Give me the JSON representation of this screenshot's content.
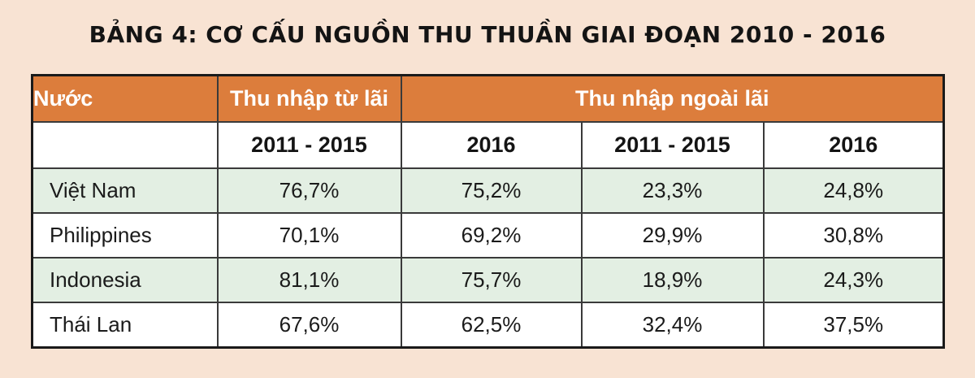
{
  "title": "BẢNG 4: CƠ CẤU NGUỒN THU THUẦN GIAI ĐOẠN 2010 - 2016",
  "colors": {
    "background": "#f8e3d3",
    "header": "#dc7d3c",
    "shaded_row": "#e3efe3"
  },
  "table": {
    "group_headers": {
      "country": "Nước",
      "interest_income": "Thu nhập từ lãi",
      "non_interest_income": "Thu nhập ngoài lãi"
    },
    "sub_headers": [
      "2011 - 2015",
      "2016",
      "2011 - 2015",
      "2016"
    ],
    "rows": [
      {
        "country": "Việt Nam",
        "values": [
          "76,7%",
          "75,2%",
          "23,3%",
          "24,8%"
        ]
      },
      {
        "country": "Philippines",
        "values": [
          "70,1%",
          "69,2%",
          "29,9%",
          "30,8%"
        ]
      },
      {
        "country": "Indonesia",
        "values": [
          "81,1%",
          "75,7%",
          "18,9%",
          "24,3%"
        ]
      },
      {
        "country": "Thái Lan",
        "values": [
          "67,6%",
          "62,5%",
          "32,4%",
          "37,5%"
        ]
      }
    ]
  }
}
